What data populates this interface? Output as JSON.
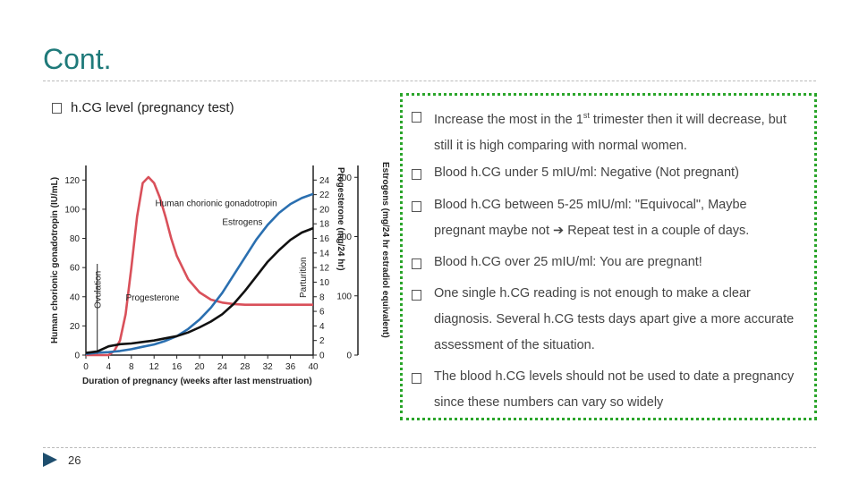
{
  "slide": {
    "title": "Cont.",
    "left_bullet": "h.CG level (pregnancy test)",
    "page_number": "26"
  },
  "bullets": [
    {
      "pre": "Increase the most in the 1",
      "sup": "st",
      "post": " trimester then it will decrease, but still it is high comparing with normal women."
    },
    {
      "text": "Blood h.CG under 5 mIU/ml: Negative (Not pregnant)"
    },
    {
      "pre": "Blood h.CG between 5-25 mIU/ml: \"Equivocal\", Maybe pregnant maybe not ",
      "arrow": "➔",
      "post": " Repeat test in a couple of days."
    },
    {
      "text": "Blood h.CG over 25 mIU/ml: You are pregnant!"
    },
    {
      "text": "One single h.CG reading is not enough to make a clear diagnosis. Several h.CG tests days apart give a more accurate assessment of the situation."
    },
    {
      "text": "The blood h.CG levels should not be used to date a pregnancy since these numbers can vary so widely"
    }
  ],
  "chart_data": {
    "type": "line",
    "xlabel": "Duration of pregnancy (weeks after last menstruation)",
    "x_ticks": [
      0,
      4,
      8,
      12,
      16,
      20,
      24,
      28,
      32,
      36,
      40
    ],
    "xlim": [
      0,
      40
    ],
    "y_left": {
      "label": "Human chorionic gonadotropin (IU/mL)",
      "ticks": [
        0,
        20,
        40,
        60,
        80,
        100,
        120
      ],
      "lim": [
        0,
        130
      ]
    },
    "y_mid": {
      "label": "Progesterone (mg/24 hr)",
      "ticks": [
        0,
        2,
        4,
        6,
        8,
        10,
        12,
        14,
        16,
        18,
        20,
        22,
        24
      ],
      "lim": [
        0,
        26
      ]
    },
    "y_right": {
      "label": "Estrogens (mg/24 hr estradiol equivalent)",
      "ticks": [
        0,
        100,
        200,
        300
      ],
      "lim": [
        0,
        320
      ]
    },
    "annotations": [
      "Ovulation",
      "Parturition"
    ],
    "colors": {
      "hcg": "#d9505a",
      "estrogens": "#2a6fb0",
      "progesterone": "#111111"
    },
    "series": [
      {
        "name": "Human chorionic gonadotropin",
        "key": "hcg",
        "x": [
          0,
          2,
          3,
          4,
          5,
          6,
          7,
          8,
          9,
          10,
          11,
          12,
          13,
          14,
          15,
          16,
          18,
          20,
          22,
          24,
          26,
          28,
          30,
          32,
          34,
          36,
          38,
          40
        ],
        "y": [
          0,
          0,
          0,
          0,
          3,
          10,
          28,
          60,
          95,
          118,
          122,
          118,
          108,
          95,
          80,
          68,
          52,
          43,
          38,
          36,
          35,
          34.5,
          34.5,
          34.5,
          34.5,
          34.5,
          34.5,
          34.5
        ]
      },
      {
        "name": "Estrogens",
        "key": "estrogens",
        "x": [
          0,
          2,
          4,
          6,
          8,
          10,
          12,
          14,
          16,
          18,
          20,
          22,
          24,
          26,
          28,
          30,
          32,
          34,
          36,
          38,
          40
        ],
        "y": [
          2,
          4,
          5,
          7,
          10,
          14,
          18,
          24,
          32,
          44,
          60,
          80,
          105,
          135,
          165,
          195,
          220,
          240,
          255,
          265,
          272
        ]
      },
      {
        "name": "Progesterone",
        "key": "progesterone",
        "x": [
          0,
          2,
          4,
          6,
          8,
          10,
          12,
          14,
          16,
          18,
          20,
          22,
          24,
          26,
          28,
          30,
          32,
          34,
          36,
          38,
          40
        ],
        "y": [
          0.3,
          0.5,
          1.2,
          1.5,
          1.6,
          1.8,
          2.0,
          2.3,
          2.6,
          3.1,
          3.8,
          4.6,
          5.6,
          7.0,
          8.8,
          10.8,
          12.8,
          14.4,
          15.8,
          16.8,
          17.4
        ]
      }
    ]
  }
}
